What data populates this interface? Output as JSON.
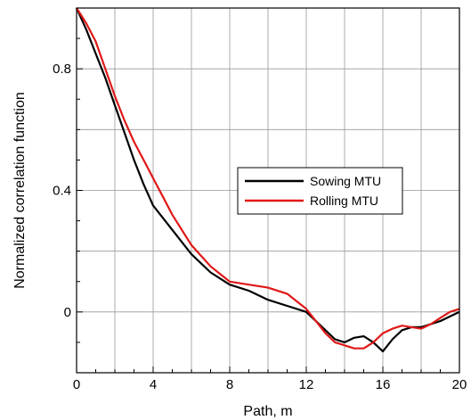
{
  "chart_data": {
    "type": "line",
    "title": "",
    "xlabel": "Path, m",
    "ylabel": "Normalized correlation function",
    "xlim": [
      0,
      20
    ],
    "ylim": [
      -0.2,
      1.0
    ],
    "x_ticks": [
      0,
      4,
      8,
      12,
      16,
      20
    ],
    "y_ticks": [
      0,
      0.4,
      0.8
    ],
    "x_tick_labels": [
      "0",
      "4",
      "8",
      "12",
      "16",
      "20"
    ],
    "y_tick_labels": [
      "0",
      "0.4",
      "0.8"
    ],
    "grid": true,
    "legend_placement": "center-right",
    "series": [
      {
        "name": "Sowing MTU",
        "color": "#000000",
        "points": [
          [
            0,
            1.0
          ],
          [
            0.5,
            0.93
          ],
          [
            1,
            0.85
          ],
          [
            1.5,
            0.77
          ],
          [
            2,
            0.68
          ],
          [
            2.5,
            0.59
          ],
          [
            3,
            0.5
          ],
          [
            3.5,
            0.42
          ],
          [
            4,
            0.35
          ],
          [
            4.5,
            0.31
          ],
          [
            5,
            0.27
          ],
          [
            6,
            0.19
          ],
          [
            7,
            0.13
          ],
          [
            8,
            0.09
          ],
          [
            9,
            0.07
          ],
          [
            10,
            0.04
          ],
          [
            11,
            0.02
          ],
          [
            12,
            0.0
          ],
          [
            12.5,
            -0.03
          ],
          [
            13,
            -0.06
          ],
          [
            13.5,
            -0.09
          ],
          [
            14,
            -0.1
          ],
          [
            14.5,
            -0.085
          ],
          [
            15,
            -0.08
          ],
          [
            15.5,
            -0.1
          ],
          [
            16,
            -0.13
          ],
          [
            16.5,
            -0.09
          ],
          [
            17,
            -0.06
          ],
          [
            17.5,
            -0.05
          ],
          [
            18,
            -0.05
          ],
          [
            18.5,
            -0.04
          ],
          [
            19,
            -0.03
          ],
          [
            19.5,
            -0.015
          ],
          [
            20,
            0.0
          ]
        ]
      },
      {
        "name": "Rolling MTU",
        "color": "#e01818",
        "points": [
          [
            0,
            1.0
          ],
          [
            0.5,
            0.95
          ],
          [
            1,
            0.89
          ],
          [
            1.5,
            0.8
          ],
          [
            2,
            0.71
          ],
          [
            2.5,
            0.63
          ],
          [
            3,
            0.56
          ],
          [
            3.5,
            0.5
          ],
          [
            4,
            0.44
          ],
          [
            4.5,
            0.38
          ],
          [
            5,
            0.32
          ],
          [
            6,
            0.22
          ],
          [
            7,
            0.15
          ],
          [
            8,
            0.1
          ],
          [
            9,
            0.09
          ],
          [
            10,
            0.08
          ],
          [
            11,
            0.06
          ],
          [
            12,
            0.01
          ],
          [
            12.5,
            -0.03
          ],
          [
            13,
            -0.07
          ],
          [
            13.5,
            -0.1
          ],
          [
            14,
            -0.11
          ],
          [
            14.5,
            -0.12
          ],
          [
            15,
            -0.12
          ],
          [
            15.5,
            -0.1
          ],
          [
            16,
            -0.07
          ],
          [
            16.5,
            -0.055
          ],
          [
            17,
            -0.045
          ],
          [
            17.5,
            -0.05
          ],
          [
            18,
            -0.055
          ],
          [
            18.5,
            -0.04
          ],
          [
            19,
            -0.02
          ],
          [
            19.5,
            0.0
          ],
          [
            20,
            0.01
          ]
        ]
      }
    ]
  }
}
